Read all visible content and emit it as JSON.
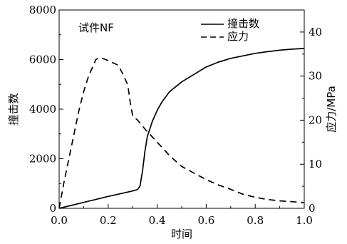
{
  "chart_data": {
    "type": "line",
    "annotation": "试件NF",
    "xlabel": "时间",
    "ylabel_left": "撞击数",
    "ylabel_right": "应力/MPa",
    "xlim": [
      0.0,
      1.0
    ],
    "ylim_left": [
      0,
      8000
    ],
    "ylim_right": [
      0,
      45
    ],
    "xticks": [
      "0.0",
      "0.2",
      "0.4",
      "0.6",
      "0.8",
      "1.0"
    ],
    "yticks_left": [
      "0",
      "2000",
      "4000",
      "6000",
      "8000"
    ],
    "yticks_right": [
      "0",
      "10",
      "20",
      "30",
      "40"
    ],
    "legend_position": "top-right",
    "series": [
      {
        "name": "撞击数",
        "axis": "left",
        "style": "solid",
        "x": [
          0.0,
          0.1,
          0.2,
          0.3,
          0.32,
          0.33,
          0.34,
          0.35,
          0.36,
          0.37,
          0.38,
          0.4,
          0.42,
          0.45,
          0.5,
          0.55,
          0.6,
          0.65,
          0.7,
          0.75,
          0.8,
          0.85,
          0.9,
          0.95,
          1.0
        ],
        "values": [
          0,
          240,
          480,
          700,
          760,
          900,
          1500,
          2300,
          2900,
          3200,
          3500,
          3950,
          4300,
          4700,
          5100,
          5400,
          5700,
          5900,
          6050,
          6150,
          6250,
          6320,
          6380,
          6420,
          6450
        ]
      },
      {
        "name": "应力",
        "axis": "right",
        "style": "dashed",
        "x": [
          0.0,
          0.02,
          0.05,
          0.08,
          0.1,
          0.12,
          0.14,
          0.15,
          0.17,
          0.2,
          0.22,
          0.24,
          0.26,
          0.28,
          0.29,
          0.3,
          0.32,
          0.35,
          0.4,
          0.45,
          0.5,
          0.55,
          0.6,
          0.65,
          0.7,
          0.75,
          0.8,
          0.85,
          0.9,
          0.95,
          1.0
        ],
        "values": [
          0,
          6,
          14,
          22,
          26.5,
          30,
          32.5,
          33.8,
          34.2,
          33.5,
          33,
          32.5,
          30.5,
          28,
          24,
          21,
          20,
          18,
          15,
          12,
          9.5,
          8,
          6.5,
          5.3,
          4.3,
          3.2,
          2.5,
          2,
          1.7,
          1.5,
          1.3
        ]
      }
    ]
  }
}
